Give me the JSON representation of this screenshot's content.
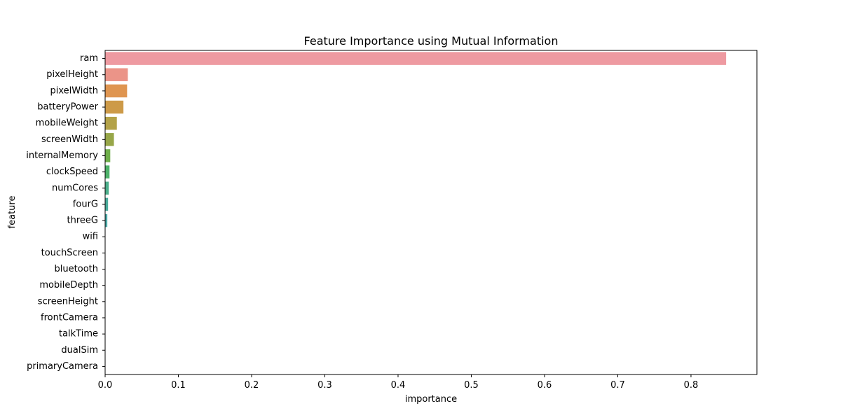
{
  "chart_data": {
    "type": "bar",
    "orientation": "horizontal",
    "title": "Feature Importance using Mutual Information",
    "xlabel": "importance",
    "ylabel": "feature",
    "xlim": [
      0,
      0.89
    ],
    "x_ticks": [
      "0.0",
      "0.1",
      "0.2",
      "0.3",
      "0.4",
      "0.5",
      "0.6",
      "0.7",
      "0.8"
    ],
    "grid": false,
    "legend": "none",
    "categories": [
      "ram",
      "pixelHeight",
      "pixelWidth",
      "batteryPower",
      "mobileWeight",
      "screenWidth",
      "internalMemory",
      "clockSpeed",
      "numCores",
      "fourG",
      "threeG",
      "wifi",
      "touchScreen",
      "bluetooth",
      "mobileDepth",
      "screenHeight",
      "frontCamera",
      "talkTime",
      "dualSim",
      "primaryCamera"
    ],
    "values": [
      0.848,
      0.031,
      0.03,
      0.025,
      0.016,
      0.012,
      0.007,
      0.006,
      0.005,
      0.004,
      0.003,
      0.0,
      0.0,
      0.0,
      0.0,
      0.0,
      0.0,
      0.0,
      0.0,
      0.0
    ],
    "colors": [
      "#ee9aa1",
      "#eb9488",
      "#df9550",
      "#cd9a48",
      "#b3a248",
      "#97a648",
      "#6fae4a",
      "#4db169",
      "#4bae8a",
      "#4aab9b",
      "#4aa9a7",
      "#4ca8b5",
      "#50a6c5",
      "#55a2d8",
      "#7c9ae6",
      "#a48ee8",
      "#c581e8",
      "#e172e0",
      "#ee75c7",
      "#ee84b5"
    ]
  }
}
